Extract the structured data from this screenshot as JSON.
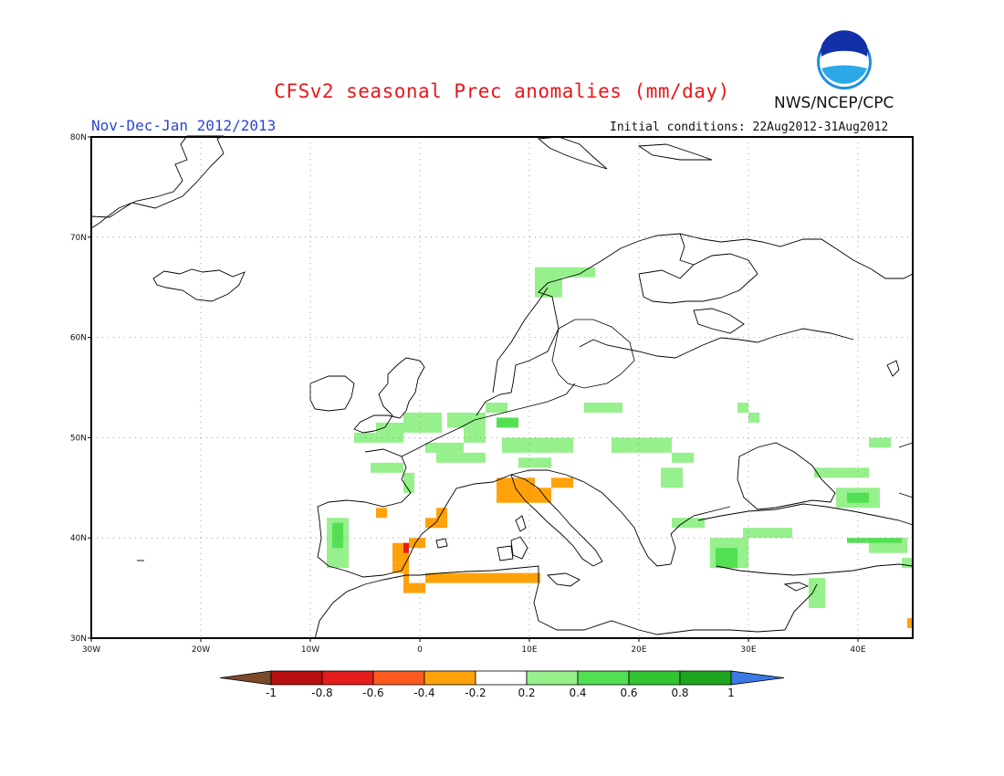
{
  "header": {
    "title": "CFSv2 seasonal Prec anomalies (mm/day)",
    "period": "Nov-Dec-Jan 2012/2013",
    "initial_conditions": "Initial conditions: 22Aug2012-31Aug2012",
    "agency": "NWS/NCEP/CPC",
    "logo_text": "NOAA"
  },
  "map": {
    "lon_range": [
      -30,
      45
    ],
    "lat_range": [
      30,
      80
    ],
    "lon_ticks": [
      "30W",
      "20W",
      "10W",
      "0",
      "10E",
      "20E",
      "30E",
      "40E"
    ],
    "lat_ticks": [
      "30N",
      "40N",
      "50N",
      "60N",
      "70N",
      "80N"
    ],
    "grid_style": "dotted"
  },
  "colorbar": {
    "labels": [
      "-1",
      "-0.8",
      "-0.6",
      "-0.4",
      "-0.2",
      "0.2",
      "0.4",
      "0.6",
      "0.8",
      "1"
    ],
    "colors": {
      "lt_-1": "#7a4a2a",
      "-1_-0.8": "#b80f0f",
      "-0.8_-0.6": "#e41c1c",
      "-0.6_-0.4": "#ff5a1e",
      "-0.4_-0.2": "#ffa20a",
      "-0.2_0.2": "#ffffff",
      "0.2_0.4": "#96f08c",
      "0.4_0.6": "#52e052",
      "0.6_0.8": "#32c432",
      "0.8_1": "#1ea51e",
      "gt_1": "#3c78e6"
    }
  },
  "anomaly_regions": [
    {
      "class": "0.2_0.4",
      "lon": [
        -4,
        -1.5
      ],
      "lat": [
        49.5,
        51.5
      ]
    },
    {
      "class": "0.2_0.4",
      "lon": [
        -1.5,
        2
      ],
      "lat": [
        50.5,
        52.5
      ]
    },
    {
      "class": "0.2_0.4",
      "lon": [
        -6,
        -4
      ],
      "lat": [
        49.5,
        50.5
      ]
    },
    {
      "class": "0.2_0.4",
      "lon": [
        -4.5,
        -1.5
      ],
      "lat": [
        46.5,
        47.5
      ]
    },
    {
      "class": "0.2_0.4",
      "lon": [
        -1.5,
        -0.5
      ],
      "lat": [
        44.5,
        46.5
      ]
    },
    {
      "class": "0.2_0.4",
      "lon": [
        0.5,
        4
      ],
      "lat": [
        48.5,
        49.5
      ]
    },
    {
      "class": "0.2_0.4",
      "lon": [
        1.5,
        6
      ],
      "lat": [
        47.5,
        48.5
      ]
    },
    {
      "class": "0.2_0.4",
      "lon": [
        2.5,
        6
      ],
      "lat": [
        51,
        52.5
      ]
    },
    {
      "class": "0.2_0.4",
      "lon": [
        6,
        8
      ],
      "lat": [
        52.5,
        53.5
      ]
    },
    {
      "class": "0.2_0.4",
      "lon": [
        4,
        6
      ],
      "lat": [
        49.5,
        51
      ]
    },
    {
      "class": "0.2_0.4",
      "lon": [
        7.5,
        14
      ],
      "lat": [
        48.5,
        50
      ]
    },
    {
      "class": "0.2_0.4",
      "lon": [
        9,
        12
      ],
      "lat": [
        47,
        48
      ]
    },
    {
      "class": "0.2_0.4",
      "lon": [
        15,
        18.5
      ],
      "lat": [
        52.5,
        53.5
      ]
    },
    {
      "class": "0.2_0.4",
      "lon": [
        17.5,
        23
      ],
      "lat": [
        48.5,
        50
      ]
    },
    {
      "class": "0.2_0.4",
      "lon": [
        23,
        25
      ],
      "lat": [
        47.5,
        48.5
      ]
    },
    {
      "class": "0.2_0.4",
      "lon": [
        22,
        24
      ],
      "lat": [
        45,
        47
      ]
    },
    {
      "class": "0.2_0.4",
      "lon": [
        23,
        26
      ],
      "lat": [
        41,
        42
      ]
    },
    {
      "class": "0.2_0.4",
      "lon": [
        29,
        30
      ],
      "lat": [
        52.5,
        53.5
      ]
    },
    {
      "class": "0.2_0.4",
      "lon": [
        30,
        31
      ],
      "lat": [
        51.5,
        52.5
      ]
    },
    {
      "class": "0.2_0.4",
      "lon": [
        29.5,
        34
      ],
      "lat": [
        40,
        41
      ]
    },
    {
      "class": "0.2_0.4",
      "lon": [
        26.5,
        30
      ],
      "lat": [
        37,
        40
      ]
    },
    {
      "class": "0.2_0.4",
      "lon": [
        36,
        41
      ],
      "lat": [
        46,
        47
      ]
    },
    {
      "class": "0.2_0.4",
      "lon": [
        38,
        42
      ],
      "lat": [
        43,
        45
      ]
    },
    {
      "class": "0.2_0.4",
      "lon": [
        41,
        44.5
      ],
      "lat": [
        38.5,
        40
      ]
    },
    {
      "class": "0.2_0.4",
      "lon": [
        44,
        45
      ],
      "lat": [
        37,
        38
      ]
    },
    {
      "class": "0.2_0.4",
      "lon": [
        41,
        43
      ],
      "lat": [
        49,
        50
      ]
    },
    {
      "class": "0.2_0.4",
      "lon": [
        35.5,
        37
      ],
      "lat": [
        33,
        36
      ]
    },
    {
      "class": "0.2_0.4",
      "lon": [
        10.5,
        13
      ],
      "lat": [
        64,
        67
      ]
    },
    {
      "class": "0.2_0.4",
      "lon": [
        13,
        16
      ],
      "lat": [
        66,
        67
      ]
    },
    {
      "class": "0.2_0.4",
      "lon": [
        -8.5,
        -6.5
      ],
      "lat": [
        37,
        42
      ]
    },
    {
      "class": "0.4_0.6",
      "lon": [
        -8,
        -7
      ],
      "lat": [
        39,
        41.5
      ]
    },
    {
      "class": "0.4_0.6",
      "lon": [
        27,
        29
      ],
      "lat": [
        37,
        39
      ]
    },
    {
      "class": "0.4_0.6",
      "lon": [
        39,
        41
      ],
      "lat": [
        43.5,
        44.5
      ]
    },
    {
      "class": "0.4_0.6",
      "lon": [
        39,
        44
      ],
      "lat": [
        39.5,
        40
      ]
    },
    {
      "class": "0.4_0.6",
      "lon": [
        7,
        9
      ],
      "lat": [
        51,
        52
      ]
    },
    {
      "class": "-0.4_-0.2",
      "lon": [
        7,
        10.5
      ],
      "lat": [
        43.5,
        46
      ]
    },
    {
      "class": "-0.4_-0.2",
      "lon": [
        10.5,
        12
      ],
      "lat": [
        43.5,
        45
      ]
    },
    {
      "class": "-0.4_-0.2",
      "lon": [
        12,
        14
      ],
      "lat": [
        45,
        46
      ]
    },
    {
      "class": "-0.4_-0.2",
      "lon": [
        -4,
        -3
      ],
      "lat": [
        42,
        43
      ]
    },
    {
      "class": "-0.4_-0.2",
      "lon": [
        0.5,
        2.5
      ],
      "lat": [
        41,
        42
      ]
    },
    {
      "class": "-0.4_-0.2",
      "lon": [
        1.5,
        2.5
      ],
      "lat": [
        42,
        43
      ]
    },
    {
      "class": "-0.4_-0.2",
      "lon": [
        -1,
        0.5
      ],
      "lat": [
        39,
        40
      ]
    },
    {
      "class": "-0.4_-0.2",
      "lon": [
        -2.5,
        -1
      ],
      "lat": [
        37.5,
        39.5
      ]
    },
    {
      "class": "-0.4_-0.2",
      "lon": [
        -2.5,
        -1.5
      ],
      "lat": [
        36.5,
        37.5
      ]
    },
    {
      "class": "-0.4_-0.2",
      "lon": [
        -1.5,
        -1
      ],
      "lat": [
        35.5,
        38
      ]
    },
    {
      "class": "-0.4_-0.2",
      "lon": [
        -1.5,
        0.5
      ],
      "lat": [
        34.5,
        35.5
      ]
    },
    {
      "class": "-0.4_-0.2",
      "lon": [
        0.5,
        11
      ],
      "lat": [
        35.5,
        36.5
      ]
    },
    {
      "class": "-0.4_-0.2",
      "lon": [
        11,
        11
      ],
      "lat": [
        36.5,
        36.5
      ]
    },
    {
      "class": "-0.4_-0.2",
      "lon": [
        44.5,
        45
      ],
      "lat": [
        31,
        32
      ]
    },
    {
      "class": "-0.8_-0.6",
      "lon": [
        -1.5,
        -1
      ],
      "lat": [
        38.5,
        39.5
      ]
    }
  ]
}
